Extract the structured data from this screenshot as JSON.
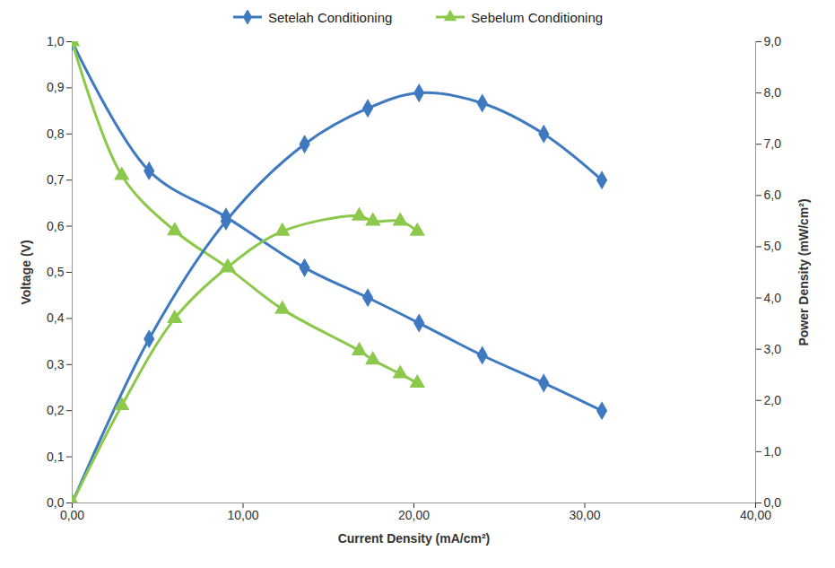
{
  "chart_data": {
    "type": "line",
    "xlabel": "Current Density (mA/cm²)",
    "ylabel": "Voltage (V)",
    "y2label": "Power Density (mW/cm²)",
    "xlim": [
      0,
      40
    ],
    "xticks": [
      {
        "value": 0,
        "label": "0,00"
      },
      {
        "value": 10,
        "label": "10,00"
      },
      {
        "value": 20,
        "label": "20,00"
      },
      {
        "value": 30,
        "label": "30,00"
      },
      {
        "value": 40,
        "label": "40,00"
      }
    ],
    "ylim": [
      0,
      1
    ],
    "yticks": [
      {
        "value": 0,
        "label": "0,0"
      },
      {
        "value": 0.1,
        "label": "0,1"
      },
      {
        "value": 0.2,
        "label": "0,2"
      },
      {
        "value": 0.3,
        "label": "0,3"
      },
      {
        "value": 0.4,
        "label": "0,4"
      },
      {
        "value": 0.5,
        "label": "0,5"
      },
      {
        "value": 0.6,
        "label": "0,6"
      },
      {
        "value": 0.7,
        "label": "0,7"
      },
      {
        "value": 0.8,
        "label": "0,8"
      },
      {
        "value": 0.9,
        "label": "0,9"
      },
      {
        "value": 1,
        "label": "1,0"
      }
    ],
    "y2lim": [
      0,
      9
    ],
    "y2ticks": [
      {
        "value": 0,
        "label": "0,0"
      },
      {
        "value": 1,
        "label": "1,0"
      },
      {
        "value": 2,
        "label": "2,0"
      },
      {
        "value": 3,
        "label": "3,0"
      },
      {
        "value": 4,
        "label": "4,0"
      },
      {
        "value": 5,
        "label": "5,0"
      },
      {
        "value": 6,
        "label": "6,0"
      },
      {
        "value": 7,
        "label": "7,0"
      },
      {
        "value": 8,
        "label": "8,0"
      },
      {
        "value": 9,
        "label": "9,0"
      }
    ],
    "grid": false,
    "legend": "top",
    "series": [
      {
        "name": "Setelah Conditioning",
        "color": "#3f79c0",
        "marker": "diamond",
        "axis": "y",
        "x": [
          0,
          4.5,
          9.0,
          13.6,
          17.3,
          20.3,
          24.0,
          27.6,
          31.0
        ],
        "values": [
          1.0,
          0.72,
          0.62,
          0.51,
          0.445,
          0.39,
          0.32,
          0.26,
          0.2
        ]
      },
      {
        "name": "Sebelum Conditioning",
        "color": "#8cc84b",
        "marker": "triangle",
        "axis": "y",
        "x": [
          0,
          2.9,
          6.0,
          9.1,
          12.3,
          16.8,
          17.6,
          19.2,
          20.2
        ],
        "values": [
          1.0,
          0.71,
          0.59,
          0.51,
          0.42,
          0.33,
          0.31,
          0.28,
          0.26
        ]
      },
      {
        "name": "Setelah Conditioning",
        "color": "#3f79c0",
        "marker": "diamond",
        "axis": "y2",
        "x": [
          0,
          4.5,
          9.0,
          13.6,
          17.3,
          20.3,
          24.0,
          27.6,
          31.0
        ],
        "values": [
          0,
          3.2,
          5.5,
          7.0,
          7.7,
          8.0,
          7.8,
          7.2,
          6.3
        ]
      },
      {
        "name": "Sebelum Conditioning",
        "color": "#8cc84b",
        "marker": "triangle",
        "axis": "y2",
        "x": [
          0,
          2.9,
          6.0,
          9.1,
          12.3,
          16.8,
          17.6,
          19.2,
          20.2
        ],
        "values": [
          0,
          1.9,
          3.6,
          4.6,
          5.3,
          5.6,
          5.5,
          5.5,
          5.3
        ]
      }
    ]
  }
}
